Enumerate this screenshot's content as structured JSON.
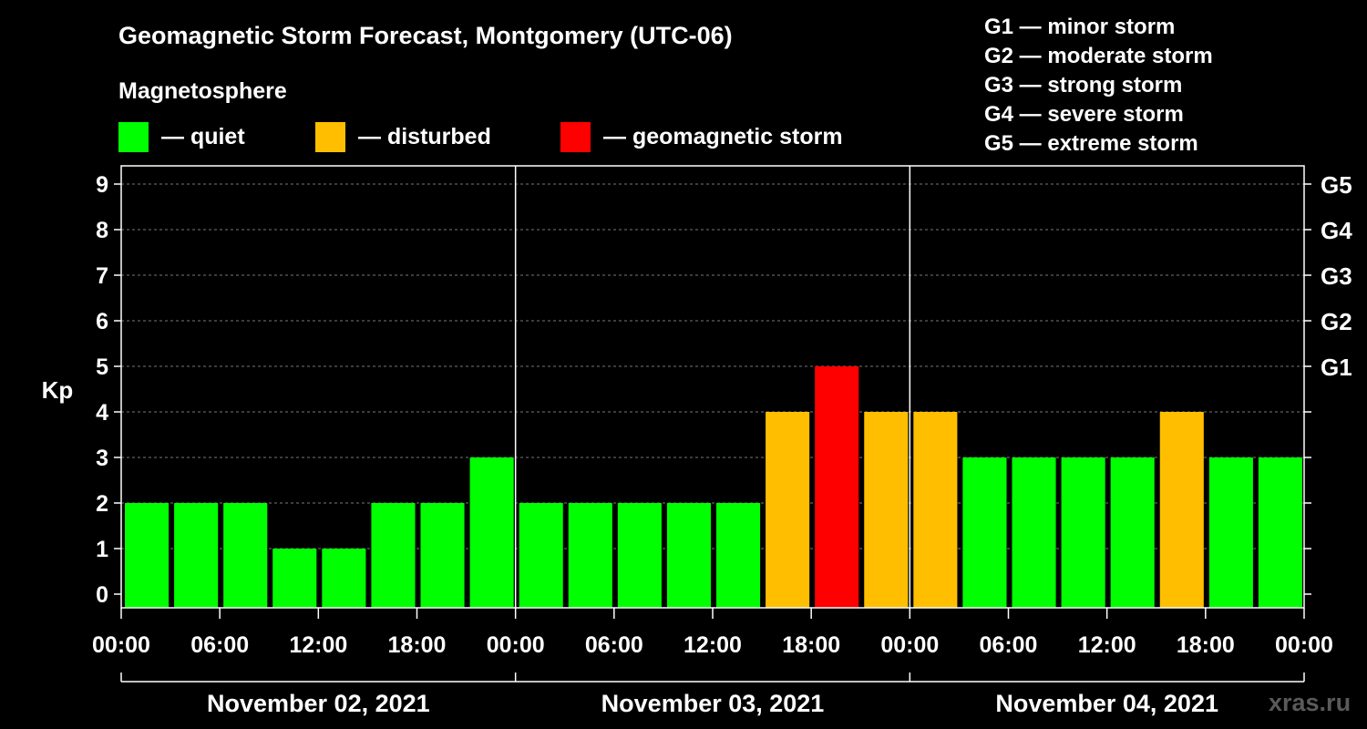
{
  "title": "Geomagnetic Storm Forecast, Montgomery (UTC-06)",
  "magnetosphere_label": "Magnetosphere",
  "legend": [
    {
      "label": "— quiet",
      "color": "#00ff00"
    },
    {
      "label": "— disturbed",
      "color": "#ffbf00"
    },
    {
      "label": "— geomagnetic storm",
      "color": "#ff0000"
    }
  ],
  "storm_levels": [
    "G1 — minor storm",
    "G2 — moderate storm",
    "G3 — strong storm",
    "G4 — severe storm",
    "G5 — extreme storm"
  ],
  "watermark": "xras.ru",
  "chart_data": {
    "type": "bar",
    "ylabel": "Kp",
    "ylim": [
      0,
      9
    ],
    "y_ticks": [
      "0",
      "1",
      "2",
      "3",
      "4",
      "5",
      "6",
      "7",
      "8",
      "9"
    ],
    "right_axis_ticks": [
      {
        "kp": 5,
        "label": "G1"
      },
      {
        "kp": 6,
        "label": "G2"
      },
      {
        "kp": 7,
        "label": "G3"
      },
      {
        "kp": 8,
        "label": "G4"
      },
      {
        "kp": 9,
        "label": "G5"
      }
    ],
    "x_tick_labels": [
      "00:00",
      "06:00",
      "12:00",
      "18:00",
      "00:00",
      "06:00",
      "12:00",
      "18:00",
      "00:00",
      "06:00",
      "12:00",
      "18:00",
      "00:00"
    ],
    "days": [
      "November 02, 2021",
      "November 03, 2021",
      "November 04, 2021"
    ],
    "interval_hours": 3,
    "values": [
      2,
      2,
      2,
      1,
      1,
      2,
      2,
      3,
      2,
      2,
      2,
      2,
      2,
      4,
      5,
      4,
      4,
      3,
      3,
      3,
      3,
      4,
      3,
      3
    ],
    "status": [
      "quiet",
      "quiet",
      "quiet",
      "quiet",
      "quiet",
      "quiet",
      "quiet",
      "quiet",
      "quiet",
      "quiet",
      "quiet",
      "quiet",
      "quiet",
      "disturbed",
      "geomagnetic storm",
      "disturbed",
      "disturbed",
      "quiet",
      "quiet",
      "quiet",
      "quiet",
      "disturbed",
      "quiet",
      "quiet"
    ],
    "colors": {
      "quiet": "#00ff00",
      "disturbed": "#ffbf00",
      "geomagnetic storm": "#ff0000"
    },
    "grid": true
  }
}
